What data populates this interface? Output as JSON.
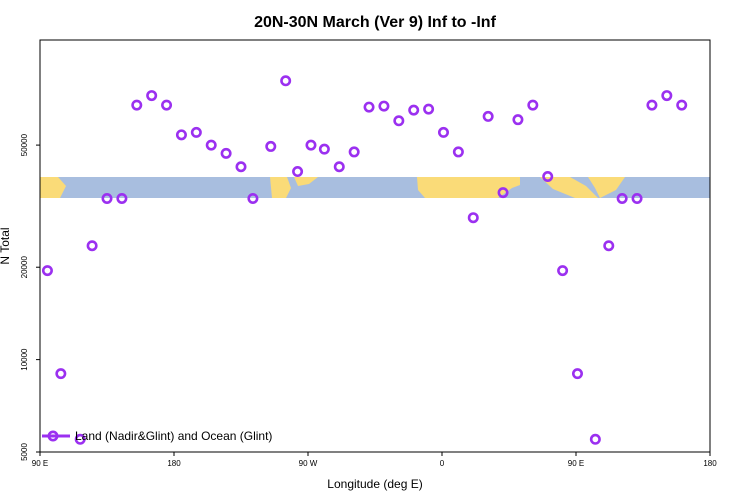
{
  "chart_data": {
    "type": "scatter",
    "title": "20N-30N March (Ver 9)   Inf to -Inf",
    "xlabel": "Longitude (deg E)",
    "ylabel": "N Total",
    "x_scale": "longitude",
    "y_scale": "log",
    "xlim": [
      90,
      540
    ],
    "ylim": [
      5000,
      110000
    ],
    "x_ticks": [
      {
        "value": 90,
        "label": "90 E"
      },
      {
        "value": 180,
        "label": "180"
      },
      {
        "value": 270,
        "label": "90 W"
      },
      {
        "value": 360,
        "label": "0"
      },
      {
        "value": 450,
        "label": "90 E"
      },
      {
        "value": 540,
        "label": "180"
      }
    ],
    "y_ticks": [
      {
        "value": 5000,
        "label": "5000"
      },
      {
        "value": 10000,
        "label": "10000"
      },
      {
        "value": 20000,
        "label": "20000"
      },
      {
        "value": 50000,
        "label": "50000"
      }
    ],
    "map_strip": {
      "lat_range": "20N-30N",
      "ocean_color": "#a8bedf",
      "land_color": "#fadb78"
    },
    "series": [
      {
        "name": "Land (Nadir&Glint) and Ocean (Glint)",
        "color": "#9b30f0",
        "marker": "open-circle",
        "points": [
          [
            95,
            19500
          ],
          [
            104,
            9000
          ],
          [
            117,
            5500
          ],
          [
            125,
            23500
          ],
          [
            135,
            33500
          ],
          [
            145,
            33500
          ],
          [
            155,
            67500
          ],
          [
            165,
            72500
          ],
          [
            175,
            67500
          ],
          [
            185,
            54000
          ],
          [
            195,
            55000
          ],
          [
            205,
            50000
          ],
          [
            215,
            47000
          ],
          [
            225,
            42500
          ],
          [
            233,
            33500
          ],
          [
            245,
            49500
          ],
          [
            255,
            81000
          ],
          [
            263,
            41000
          ],
          [
            272,
            50000
          ],
          [
            281,
            48500
          ],
          [
            291,
            42500
          ],
          [
            301,
            47500
          ],
          [
            311,
            66500
          ],
          [
            321,
            67000
          ],
          [
            331,
            60000
          ],
          [
            341,
            65000
          ],
          [
            351,
            65500
          ],
          [
            361,
            55000
          ],
          [
            371,
            47500
          ],
          [
            381,
            29000
          ],
          [
            391,
            62000
          ],
          [
            401,
            35000
          ],
          [
            411,
            60500
          ],
          [
            421,
            67500
          ],
          [
            431,
            39500
          ],
          [
            441,
            19500
          ],
          [
            451,
            9000
          ],
          [
            463,
            5500
          ],
          [
            472,
            23500
          ],
          [
            481,
            33500
          ],
          [
            491,
            33500
          ],
          [
            501,
            67500
          ],
          [
            511,
            72500
          ],
          [
            521,
            67500
          ]
        ]
      }
    ],
    "legend": {
      "position": "bottom-left",
      "label": "Land (Nadir&Glint) and Ocean (Glint)"
    }
  }
}
